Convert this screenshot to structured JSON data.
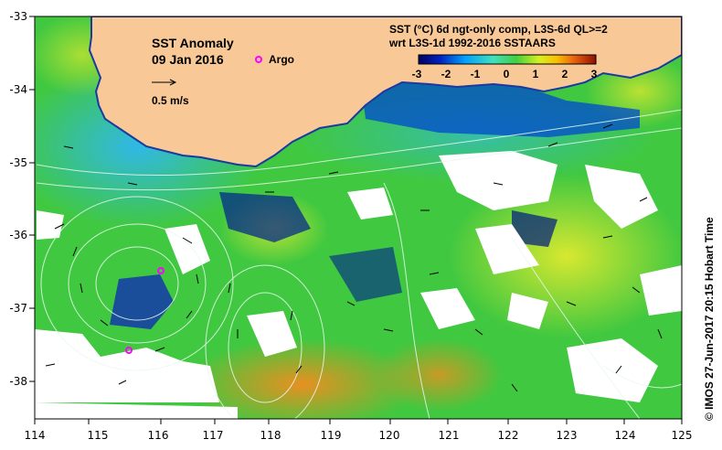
{
  "title": {
    "product": "SST Anomaly",
    "date": "09 Jan 2016",
    "argo_label": "Argo",
    "velocity_scale": "0.5 m/s"
  },
  "header": {
    "line1": "SST (°C) 6d ngt-only comp, L3S-6d QL>=2",
    "line2": "wrt L3S-1d 1992-2016 SSTAARS"
  },
  "colorbar": {
    "ticks": [
      "-3",
      "-2",
      "-1",
      "0",
      "1",
      "2",
      "3"
    ]
  },
  "axes": {
    "x_ticks": [
      "114",
      "115",
      "116",
      "117",
      "118",
      "119",
      "120",
      "121",
      "122",
      "123",
      "124",
      "125"
    ],
    "y_ticks": [
      "-33",
      "-34",
      "-35",
      "-36",
      "-37",
      "-38"
    ]
  },
  "credit": "© IMOS 27-Jun-2017 20:15 Hobart Time",
  "colors": {
    "land": "#f8c896",
    "ocean_mid": "#40d040",
    "ocean_warm": "#e8a020",
    "ocean_cool": "#30b8e8",
    "ocean_cold": "#001880",
    "argo": "#ff00ff"
  }
}
